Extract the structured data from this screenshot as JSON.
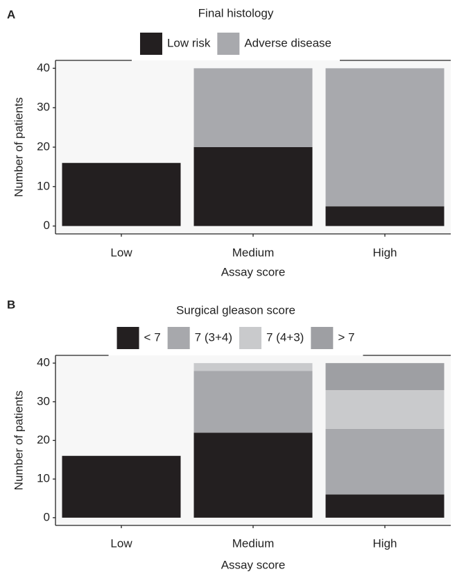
{
  "chart_data": [
    {
      "type": "stacked-bar",
      "panel": "A",
      "title": "Final histology",
      "xlabel": "Assay score",
      "ylabel": "Number of patients",
      "categories": [
        "Low",
        "Medium",
        "High"
      ],
      "series": [
        {
          "name": "Low risk",
          "color": "#231f20",
          "values": [
            16,
            20,
            5
          ]
        },
        {
          "name": "Adverse disease",
          "color": "#a8a9ad",
          "values": [
            0,
            20,
            35
          ]
        }
      ],
      "ylim": [
        -2,
        42
      ],
      "yticks": [
        0,
        10,
        20,
        30,
        40
      ]
    },
    {
      "type": "stacked-bar",
      "panel": "B",
      "title": "Surgical gleason score",
      "xlabel": "Assay score",
      "ylabel": "Number of patients",
      "categories": [
        "Low",
        "Medium",
        "High"
      ],
      "series": [
        {
          "name": "< 7",
          "color": "#231f20",
          "values": [
            16,
            22,
            6
          ]
        },
        {
          "name": "7 (3+4)",
          "color": "#a7a8ac",
          "values": [
            0,
            16,
            17
          ]
        },
        {
          "name": "7 (4+3)",
          "color": "#c9cacc",
          "values": [
            0,
            2,
            10
          ]
        },
        {
          "name": "> 7",
          "color": "#9e9fa3",
          "values": [
            0,
            0,
            7
          ]
        }
      ],
      "ylim": [
        -2,
        42
      ],
      "yticks": [
        0,
        10,
        20,
        30,
        40
      ]
    }
  ]
}
